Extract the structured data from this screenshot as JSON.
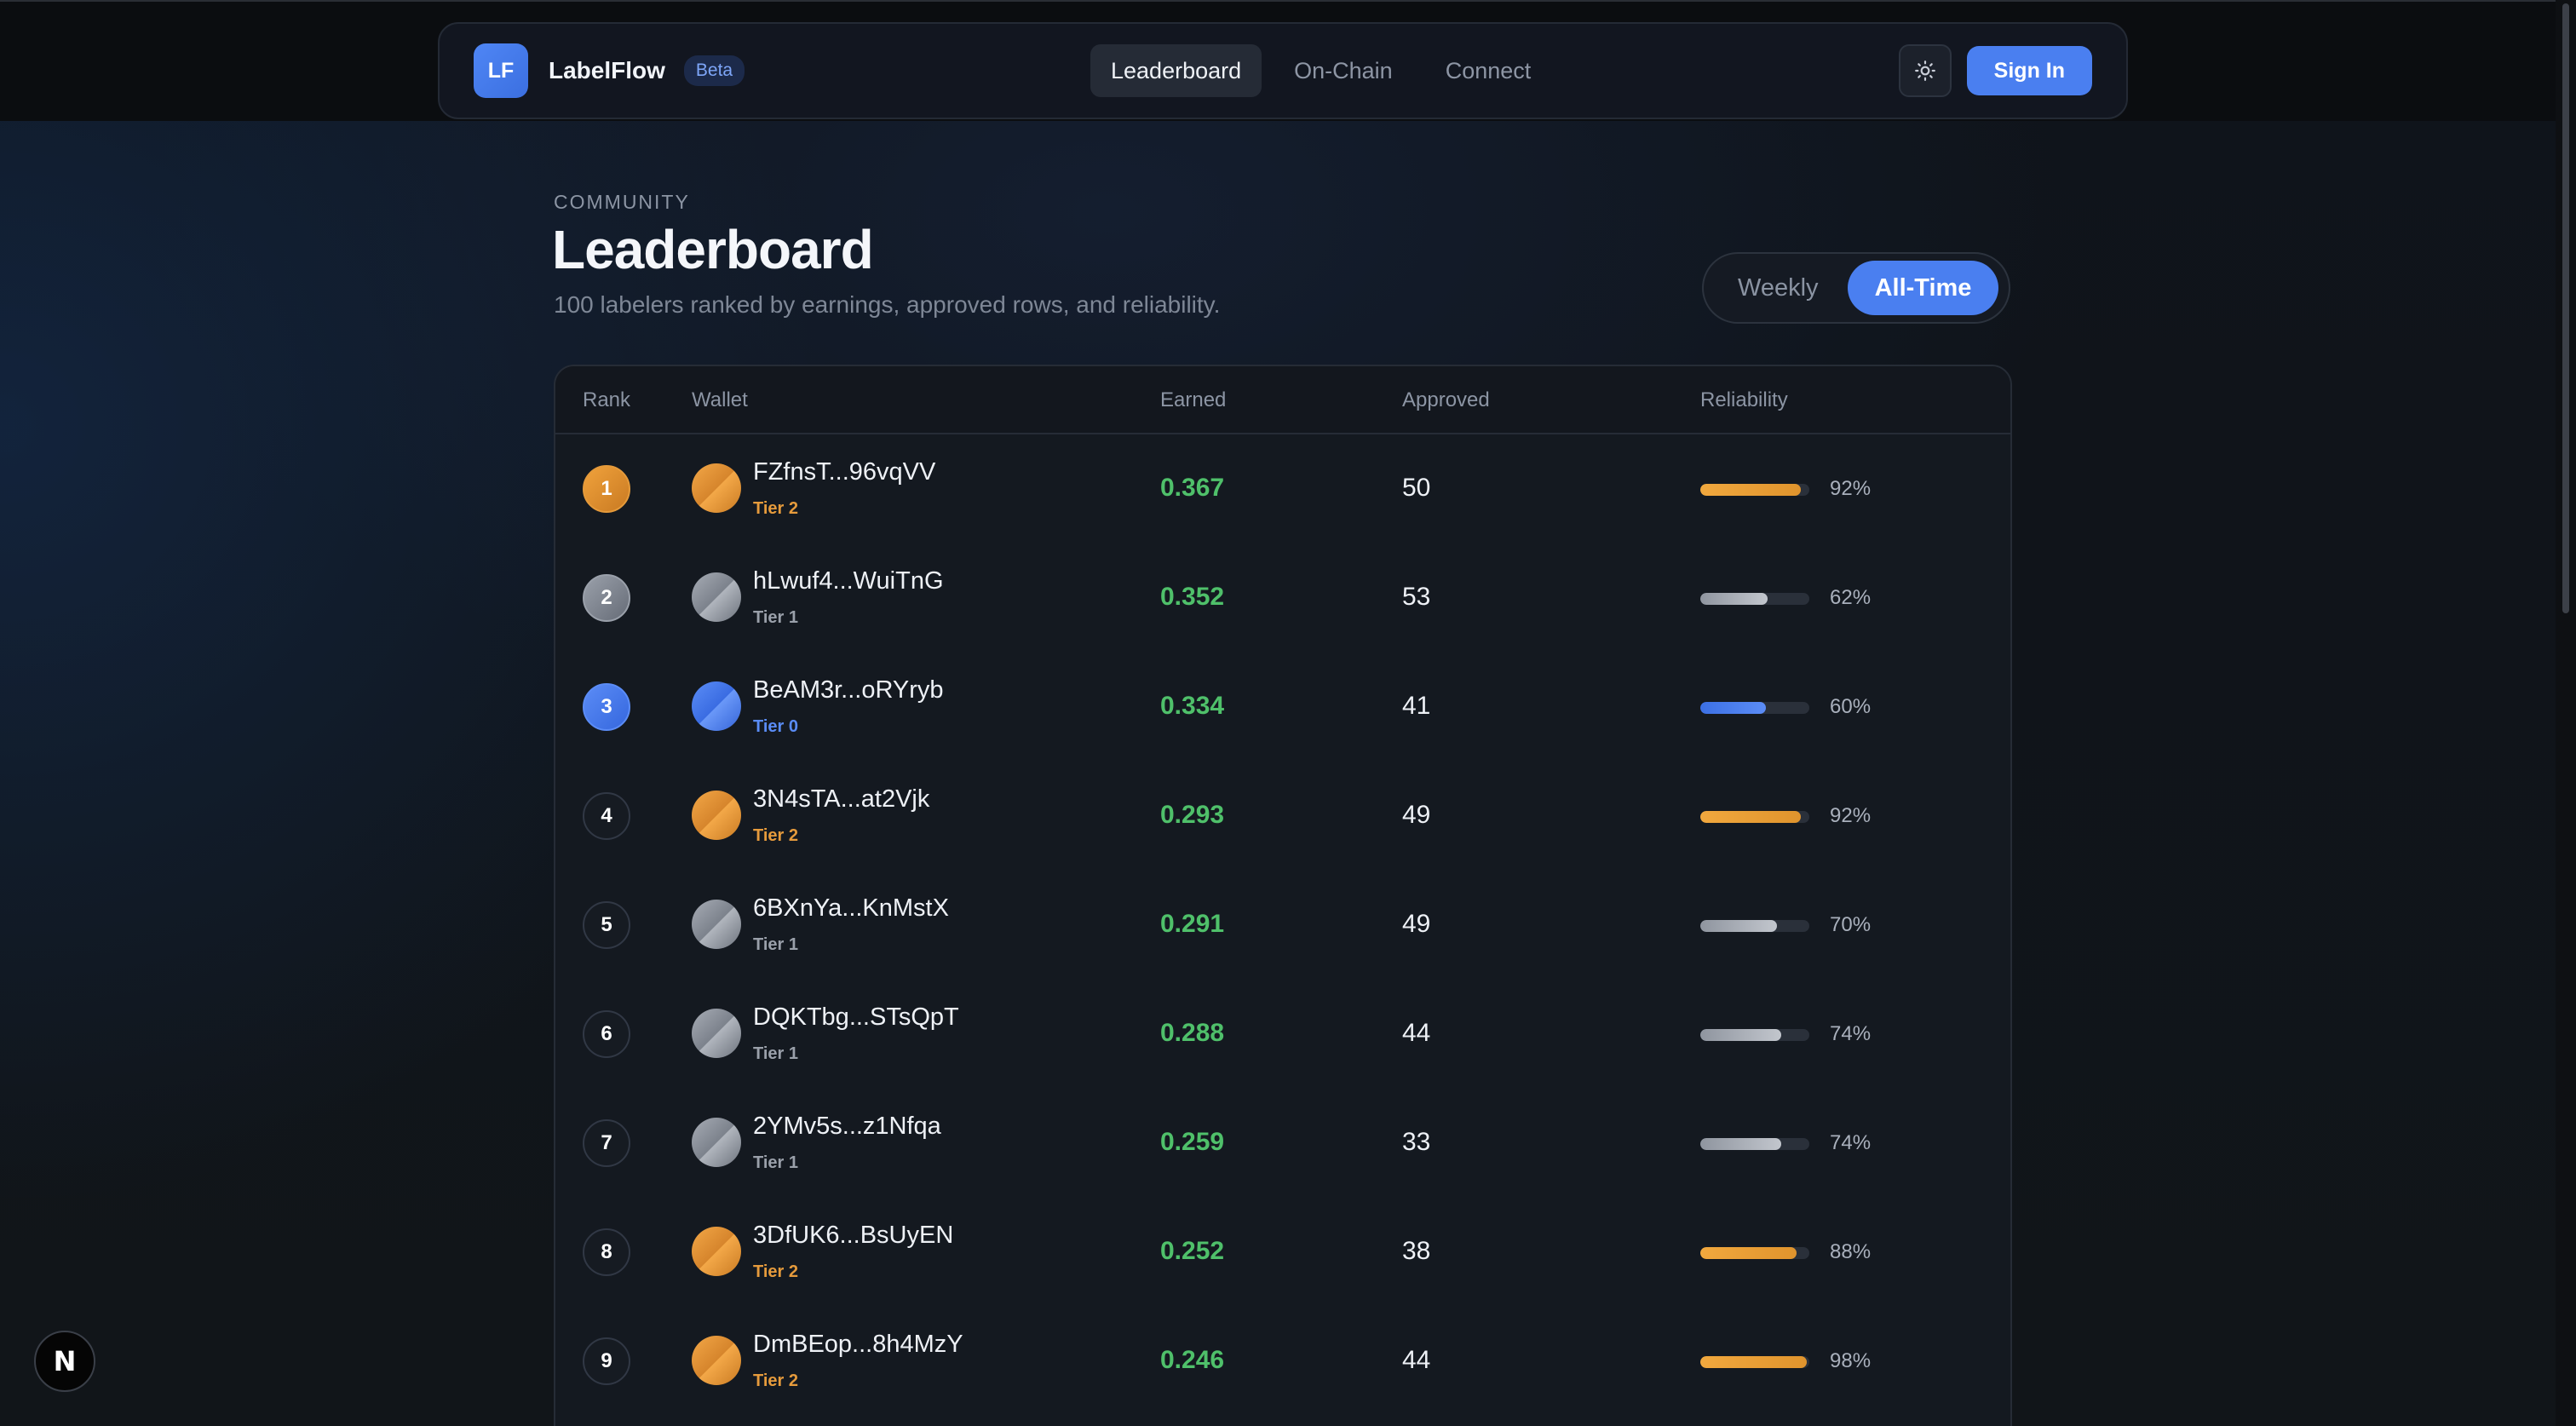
{
  "nav": {
    "logo": "LF",
    "brand": "LabelFlow",
    "badge": "Beta",
    "links": [
      "Leaderboard",
      "On-Chain",
      "Connect"
    ],
    "active_link": "Leaderboard",
    "theme_icon": "sun-icon",
    "signin": "Sign In"
  },
  "header": {
    "section": "COMMUNITY",
    "title": "Leaderboard",
    "subtitle": "100 labelers ranked by earnings, approved rows, and reliability."
  },
  "toggle": {
    "options": [
      "Weekly",
      "All-Time"
    ],
    "selected": "All-Time"
  },
  "table": {
    "columns": [
      "Rank",
      "Wallet",
      "Earned",
      "Approved",
      "Reliability"
    ],
    "rows": [
      {
        "rank": "1",
        "wallet": "FZfnsT...96vqVV",
        "tier": "Tier 2",
        "earned": "0.367",
        "approved": "50",
        "reliability": 92,
        "reliability_label": "92%"
      },
      {
        "rank": "2",
        "wallet": "hLwuf4...WuiTnG",
        "tier": "Tier 1",
        "earned": "0.352",
        "approved": "53",
        "reliability": 62,
        "reliability_label": "62%"
      },
      {
        "rank": "3",
        "wallet": "BeAM3r...oRYryb",
        "tier": "Tier 0",
        "earned": "0.334",
        "approved": "41",
        "reliability": 60,
        "reliability_label": "60%"
      },
      {
        "rank": "4",
        "wallet": "3N4sTA...at2Vjk",
        "tier": "Tier 2",
        "earned": "0.293",
        "approved": "49",
        "reliability": 92,
        "reliability_label": "92%"
      },
      {
        "rank": "5",
        "wallet": "6BXnYa...KnMstX",
        "tier": "Tier 1",
        "earned": "0.291",
        "approved": "49",
        "reliability": 70,
        "reliability_label": "70%"
      },
      {
        "rank": "6",
        "wallet": "DQKTbg...STsQpT",
        "tier": "Tier 1",
        "earned": "0.288",
        "approved": "44",
        "reliability": 74,
        "reliability_label": "74%"
      },
      {
        "rank": "7",
        "wallet": "2YMv5s...z1Nfqa",
        "tier": "Tier 1",
        "earned": "0.259",
        "approved": "33",
        "reliability": 74,
        "reliability_label": "74%"
      },
      {
        "rank": "8",
        "wallet": "3DfUK6...BsUyEN",
        "tier": "Tier 2",
        "earned": "0.252",
        "approved": "38",
        "reliability": 88,
        "reliability_label": "88%"
      },
      {
        "rank": "9",
        "wallet": "DmBEop...8h4MzY",
        "tier": "Tier 2",
        "earned": "0.246",
        "approved": "44",
        "reliability": 98,
        "reliability_label": "98%"
      }
    ]
  },
  "colors": {
    "accent": "#4a7ff0",
    "tier2": "#e69b3c",
    "tier1": "#9aa0aa",
    "tier0": "#5a8cf6",
    "earned": "#4fc06a"
  },
  "dev_badge": "N"
}
